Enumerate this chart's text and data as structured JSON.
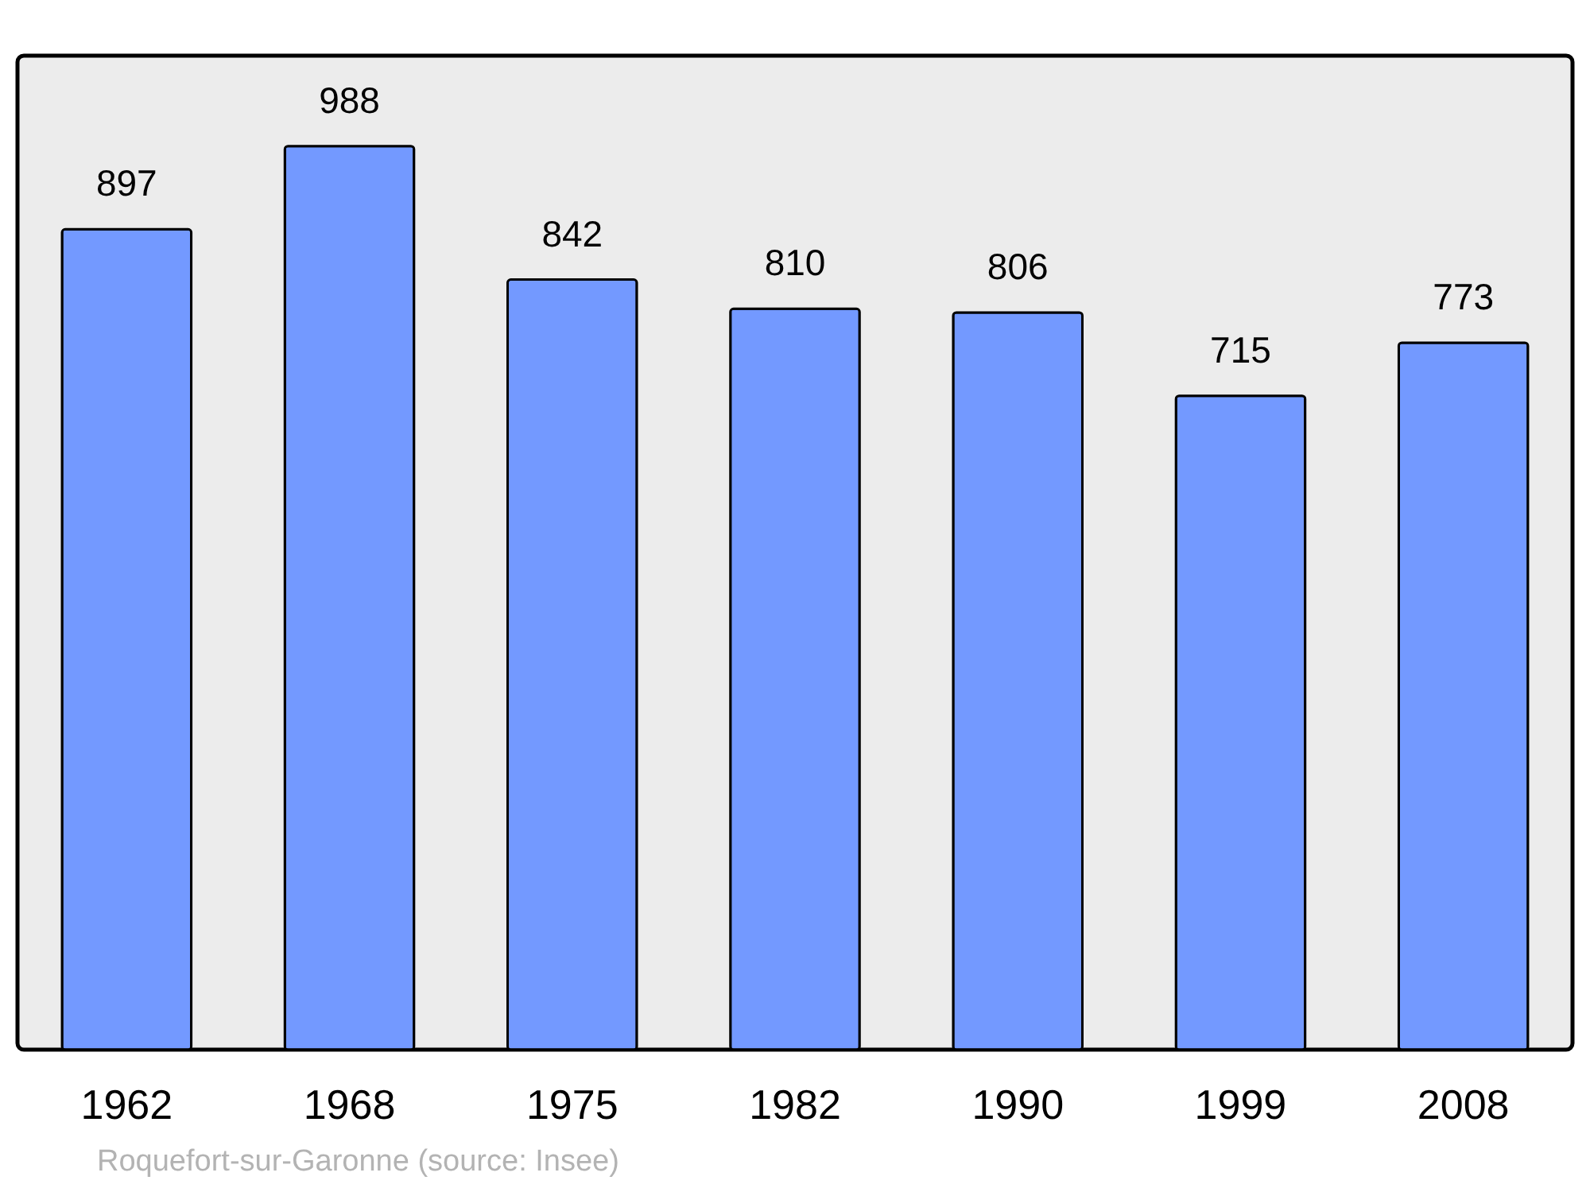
{
  "chart_data": {
    "type": "bar",
    "categories": [
      "1962",
      "1968",
      "1975",
      "1982",
      "1990",
      "1999",
      "2008"
    ],
    "values": [
      897,
      988,
      842,
      810,
      806,
      715,
      773
    ],
    "color": "#7399ff",
    "data_labels": true,
    "annotations": [
      "Roquefort-sur-Garonne    (source: Insee)"
    ]
  }
}
